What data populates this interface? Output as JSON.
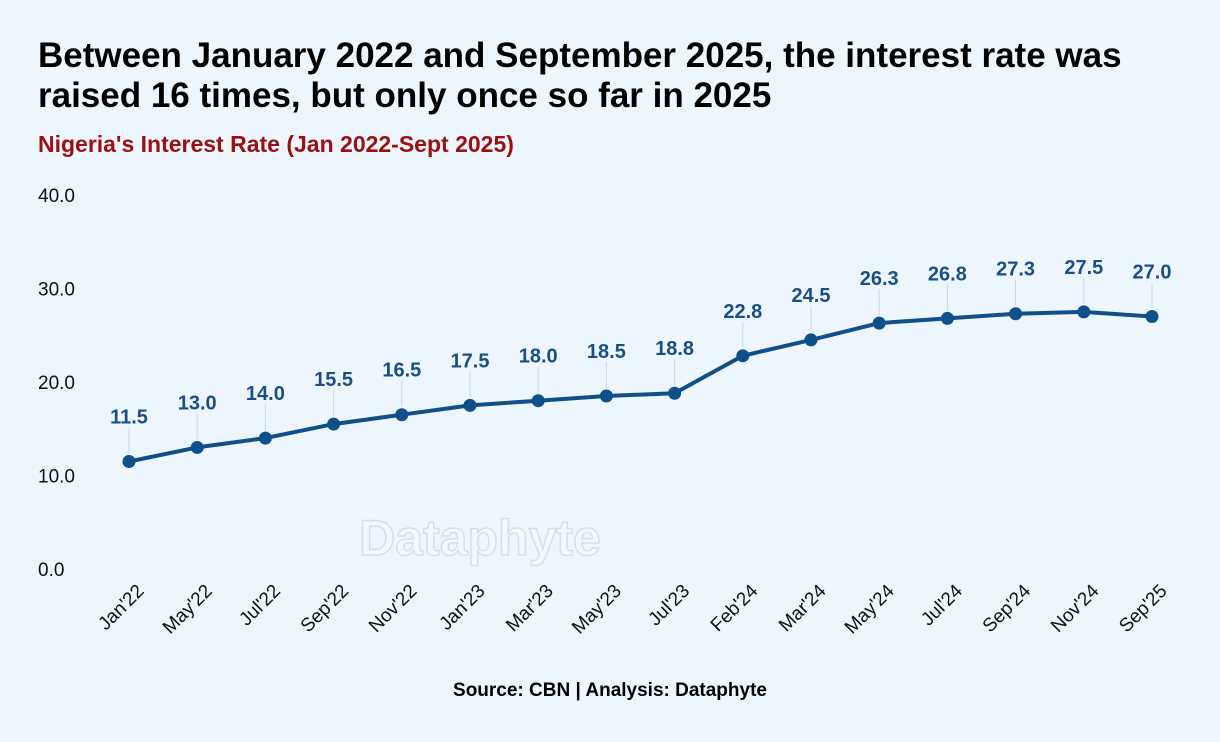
{
  "title": "Between January 2022 and September 2025, the interest rate was raised 16 times, but only once so far in 2025",
  "subtitle": "Nigeria's Interest Rate (Jan 2022-Sept 2025)",
  "source": "Source: CBN | Analysis: Dataphyte",
  "watermark": "Dataphyte",
  "colors": {
    "line": "#0f4f8a",
    "label": "#1a4f86",
    "subtitle": "#9b1010",
    "background": "#eef6fd"
  },
  "chart_data": {
    "type": "line",
    "title": "Nigeria's Interest Rate (Jan 2022-Sept 2025)",
    "xlabel": "",
    "ylabel": "",
    "categories": [
      "Jan'22",
      "May'22",
      "Jul'22",
      "Sep'22",
      "Nov'22",
      "Jan'23",
      "Mar'23",
      "May'23",
      "Jul'23",
      "Feb'24",
      "Mar'24",
      "May'24",
      "Jul'24",
      "Sep'24",
      "Nov'24",
      "Sep'25"
    ],
    "values": [
      11.5,
      13.0,
      14.0,
      15.5,
      16.5,
      17.5,
      18.0,
      18.5,
      18.8,
      22.8,
      24.5,
      26.3,
      26.8,
      27.3,
      27.5,
      27.0
    ],
    "data_labels": [
      "11.5",
      "13.0",
      "14.0",
      "15.5",
      "16.5",
      "17.5",
      "18.0",
      "18.5",
      "18.8",
      "22.8",
      "24.5",
      "26.3",
      "26.8",
      "27.3",
      "27.5",
      "27.0"
    ],
    "yticks": [
      "0.0",
      "10.0",
      "20.0",
      "30.0",
      "40.0"
    ],
    "ylim": [
      0,
      40
    ],
    "grid": false,
    "legend": false
  }
}
